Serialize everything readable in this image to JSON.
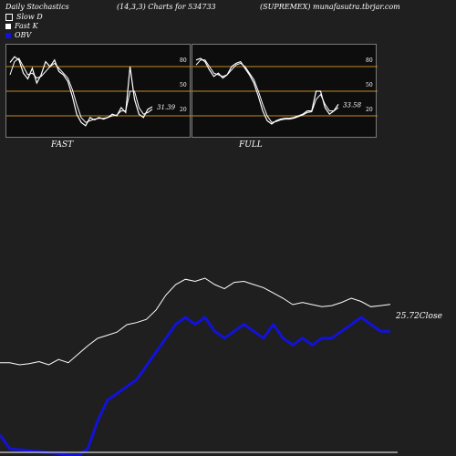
{
  "header": {
    "left": "Daily Stochastics",
    "mid": "(14,3,3) Charts for 534733",
    "right": "(SUPREMEX) munafasutra.tbrjar.com"
  },
  "legend": [
    {
      "label": "Slow  D",
      "color": "#1f1f1f",
      "border": "#ffffff"
    },
    {
      "label": "Fast K",
      "color": "#ffffff",
      "border": "#ffffff"
    },
    {
      "label": "OBV",
      "color": "#1212d8",
      "border": "#1212d8"
    }
  ],
  "colors": {
    "band": "#c8861f",
    "line": "#ffffff",
    "obv": "#1212d8",
    "panel": "#0d0d0d"
  },
  "panels": {
    "fast": {
      "label": "FAST",
      "last_value": "31.39",
      "levels": [
        "80",
        "50",
        "20"
      ]
    },
    "full": {
      "label": "FULL",
      "last_value": "33.58",
      "levels": [
        "80",
        "50",
        "20"
      ]
    }
  },
  "main": {
    "close_label": "25.72Close"
  },
  "chart_data": [
    {
      "type": "line",
      "title": "FAST",
      "ylim": [
        0,
        100
      ],
      "bands": [
        80,
        50,
        20
      ],
      "series": [
        {
          "name": "Fast K",
          "values": [
            85,
            92,
            88,
            72,
            65,
            78,
            60,
            70,
            86,
            80,
            88,
            74,
            70,
            62,
            44,
            22,
            12,
            8,
            18,
            15,
            18,
            16,
            18,
            22,
            20,
            30,
            24,
            80,
            40,
            22,
            18,
            28,
            31
          ]
        },
        {
          "name": "Slow  D",
          "values": [
            70,
            86,
            90,
            80,
            70,
            72,
            66,
            68,
            74,
            80,
            84,
            78,
            72,
            66,
            52,
            34,
            18,
            12,
            14,
            16,
            17,
            17,
            18,
            20,
            21,
            26,
            26,
            50,
            50,
            30,
            22,
            24,
            28
          ]
        }
      ]
    },
    {
      "type": "line",
      "title": "FULL",
      "ylim": [
        0,
        100
      ],
      "bands": [
        80,
        50,
        20
      ],
      "series": [
        {
          "name": "Fast K",
          "values": [
            88,
            90,
            86,
            76,
            68,
            72,
            66,
            70,
            80,
            84,
            86,
            78,
            70,
            60,
            44,
            26,
            14,
            10,
            14,
            16,
            17,
            17,
            18,
            20,
            22,
            26,
            26,
            50,
            50,
            30,
            22,
            26,
            34
          ]
        },
        {
          "name": "Slow  D",
          "values": [
            82,
            88,
            88,
            80,
            72,
            70,
            68,
            70,
            76,
            82,
            84,
            80,
            72,
            64,
            50,
            34,
            20,
            12,
            13,
            15,
            16,
            16,
            17,
            19,
            21,
            24,
            25,
            40,
            46,
            34,
            26,
            26,
            30
          ]
        }
      ]
    },
    {
      "type": "line",
      "title": "",
      "series": [
        {
          "name": "Close",
          "values": [
            20.2,
            20.2,
            20.0,
            20.1,
            20.3,
            20.0,
            20.5,
            20.2,
            21.0,
            21.8,
            22.5,
            22.8,
            23.1,
            23.8,
            24.0,
            24.3,
            25.2,
            26.6,
            27.6,
            28.1,
            27.9,
            28.2,
            27.6,
            27.2,
            27.8,
            27.9,
            27.6,
            27.3,
            26.8,
            26.3,
            25.7,
            25.9,
            25.7,
            25.5,
            25.6,
            25.9,
            26.3,
            26.0,
            25.5,
            25.6,
            25.72
          ]
        },
        {
          "name": "OBV",
          "values": [
            -8,
            -10,
            -12,
            -14,
            -16,
            -16,
            -14,
            -12,
            -11,
            -10,
            -6,
            -3,
            -2,
            -1,
            0,
            2,
            4,
            6,
            8,
            9,
            8,
            9,
            7,
            6,
            7,
            8,
            7,
            6,
            8,
            6,
            5,
            6,
            5,
            6,
            6,
            7,
            8,
            9,
            8,
            7,
            7
          ]
        }
      ]
    }
  ]
}
